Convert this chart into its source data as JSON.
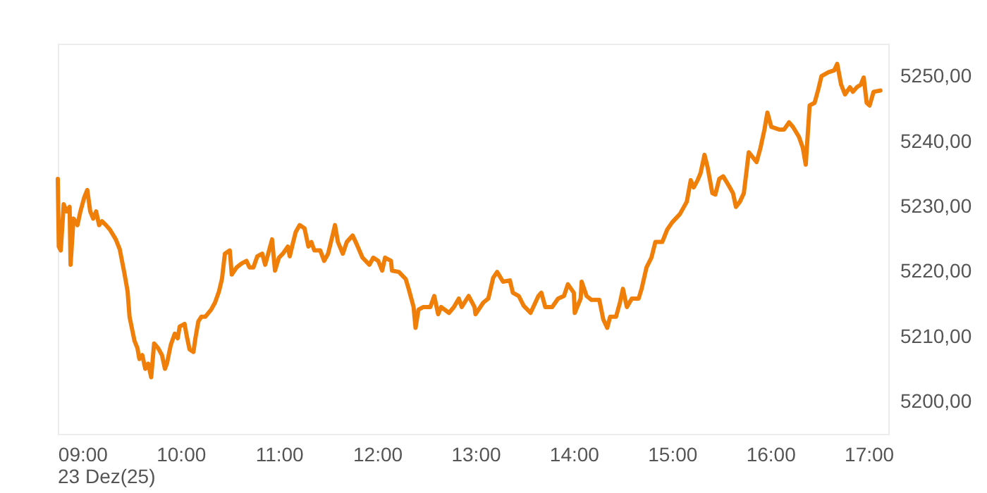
{
  "chart_data": {
    "type": "line",
    "x": [
      8.75,
      8.76,
      8.78,
      8.81,
      8.84,
      8.87,
      8.88,
      8.91,
      8.95,
      8.98,
      9.02,
      9.05,
      9.08,
      9.11,
      9.14,
      9.17,
      9.2,
      9.24,
      9.28,
      9.34,
      9.38,
      9.43,
      9.46,
      9.48,
      9.53,
      9.56,
      9.58,
      9.61,
      9.64,
      9.67,
      9.7,
      9.73,
      9.77,
      9.81,
      9.84,
      9.86,
      9.9,
      9.94,
      9.97,
      9.99,
      10.04,
      10.06,
      10.09,
      10.13,
      10.15,
      10.18,
      10.21,
      10.25,
      10.31,
      10.35,
      10.39,
      10.42,
      10.45,
      10.5,
      10.52,
      10.57,
      10.62,
      10.67,
      10.7,
      10.74,
      10.78,
      10.83,
      10.86,
      10.88,
      10.93,
      10.96,
      11.0,
      11.04,
      11.09,
      11.11,
      11.14,
      11.17,
      11.21,
      11.26,
      11.3,
      11.33,
      11.36,
      11.42,
      11.46,
      11.5,
      11.55,
      11.57,
      11.6,
      11.65,
      11.69,
      11.75,
      11.79,
      11.85,
      11.92,
      11.96,
      12.01,
      12.05,
      12.08,
      12.14,
      12.15,
      12.22,
      12.29,
      12.32,
      12.37,
      12.39,
      12.42,
      12.47,
      12.54,
      12.58,
      12.62,
      12.65,
      12.73,
      12.78,
      12.83,
      12.86,
      12.93,
      12.99,
      13.0,
      13.08,
      13.13,
      13.18,
      13.22,
      13.28,
      13.35,
      13.38,
      13.44,
      13.49,
      13.56,
      13.64,
      13.67,
      13.71,
      13.78,
      13.84,
      13.9,
      13.94,
      14.0,
      14.01,
      14.07,
      14.08,
      14.13,
      14.18,
      14.26,
      14.3,
      14.34,
      14.37,
      14.43,
      14.47,
      14.5,
      14.54,
      14.59,
      14.66,
      14.69,
      14.74,
      14.79,
      14.83,
      14.9,
      14.95,
      15.0,
      15.08,
      15.15,
      15.19,
      15.22,
      15.26,
      15.29,
      15.33,
      15.36,
      15.41,
      15.44,
      15.48,
      15.52,
      15.58,
      15.62,
      15.65,
      15.69,
      15.73,
      15.76,
      15.78,
      15.86,
      15.9,
      15.94,
      15.97,
      16.01,
      16.09,
      16.14,
      16.19,
      16.23,
      16.29,
      16.33,
      16.36,
      16.4,
      16.45,
      16.49,
      16.52,
      16.59,
      16.65,
      16.68,
      16.72,
      16.76,
      16.81,
      16.84,
      16.88,
      16.92,
      16.95,
      16.98,
      17.01,
      17.05,
      17.12
    ],
    "series": [
      {
        "color": "#f07f09",
        "values": [
          5234.2,
          5223.8,
          5223.2,
          5230.3,
          5229.2,
          5229.9,
          5221.0,
          5228.1,
          5227.1,
          5229.2,
          5231.4,
          5232.5,
          5229.2,
          5228.1,
          5229.2,
          5227.1,
          5227.7,
          5227.1,
          5226.4,
          5224.9,
          5223.4,
          5219.5,
          5216.9,
          5213.0,
          5209.3,
          5208.2,
          5206.5,
          5207.1,
          5205.0,
          5205.8,
          5203.7,
          5208.9,
          5208.2,
          5207.1,
          5205.0,
          5205.8,
          5208.7,
          5210.4,
          5209.7,
          5211.5,
          5211.9,
          5210.2,
          5208.0,
          5207.6,
          5209.7,
          5212.3,
          5213.0,
          5213.0,
          5214.1,
          5215.2,
          5216.9,
          5218.8,
          5222.7,
          5223.2,
          5219.5,
          5220.6,
          5221.2,
          5221.6,
          5220.6,
          5220.6,
          5222.3,
          5222.7,
          5221.0,
          5222.1,
          5224.9,
          5220.1,
          5222.1,
          5222.7,
          5223.8,
          5222.3,
          5224.2,
          5226.0,
          5227.1,
          5226.6,
          5223.8,
          5224.5,
          5223.2,
          5223.2,
          5221.6,
          5222.7,
          5225.8,
          5227.1,
          5224.5,
          5222.7,
          5224.5,
          5225.5,
          5224.2,
          5222.1,
          5221.0,
          5222.1,
          5221.6,
          5220.1,
          5222.1,
          5221.6,
          5220.1,
          5219.9,
          5218.8,
          5217.3,
          5214.5,
          5211.3,
          5214.1,
          5214.5,
          5214.5,
          5216.2,
          5213.4,
          5214.5,
          5213.6,
          5214.5,
          5215.8,
          5214.5,
          5216.2,
          5214.5,
          5213.4,
          5215.2,
          5215.8,
          5219.0,
          5219.9,
          5218.4,
          5218.6,
          5216.7,
          5216.2,
          5214.7,
          5213.6,
          5216.2,
          5216.7,
          5214.5,
          5214.5,
          5215.8,
          5216.2,
          5218.0,
          5216.7,
          5213.6,
          5215.8,
          5218.4,
          5216.2,
          5215.6,
          5215.6,
          5212.6,
          5211.3,
          5213.0,
          5213.0,
          5215.2,
          5217.3,
          5214.5,
          5215.8,
          5215.8,
          5217.3,
          5220.6,
          5222.1,
          5224.5,
          5224.5,
          5226.4,
          5227.5,
          5228.8,
          5230.7,
          5234.0,
          5232.9,
          5234.0,
          5235.1,
          5237.9,
          5236.1,
          5232.0,
          5231.8,
          5234.2,
          5234.6,
          5233.1,
          5232.0,
          5229.9,
          5230.7,
          5232.0,
          5235.7,
          5238.3,
          5236.8,
          5239.0,
          5241.8,
          5244.4,
          5242.2,
          5241.8,
          5241.8,
          5242.9,
          5242.2,
          5240.7,
          5239.0,
          5236.4,
          5245.5,
          5245.9,
          5248.1,
          5250.0,
          5250.6,
          5250.9,
          5251.9,
          5248.7,
          5247.2,
          5248.3,
          5247.6,
          5248.3,
          5248.7,
          5249.8,
          5245.9,
          5245.5,
          5247.6,
          5247.8
        ]
      }
    ],
    "xlim": [
      8.75,
      17.2
    ],
    "xticks": [
      {
        "value": 9,
        "label": "09:00"
      },
      {
        "value": 10,
        "label": "10:00"
      },
      {
        "value": 11,
        "label": "11:00"
      },
      {
        "value": 12,
        "label": "12:00"
      },
      {
        "value": 13,
        "label": "13:00"
      },
      {
        "value": 14,
        "label": "14:00"
      },
      {
        "value": 15,
        "label": "15:00"
      },
      {
        "value": 16,
        "label": "16:00"
      },
      {
        "value": 17,
        "label": "17:00"
      }
    ],
    "ylim": [
      5195,
      5255
    ],
    "yticks": [
      {
        "value": 5200,
        "label": "5200,00"
      },
      {
        "value": 5210,
        "label": "5210,00"
      },
      {
        "value": 5220,
        "label": "5220,00"
      },
      {
        "value": 5230,
        "label": "5230,00"
      },
      {
        "value": 5240,
        "label": "5240,00"
      },
      {
        "value": 5250,
        "label": "5250,00"
      }
    ],
    "annotations": [
      "23 Dez(25)"
    ],
    "grid": false,
    "marker": "none",
    "line_style": "solid"
  }
}
